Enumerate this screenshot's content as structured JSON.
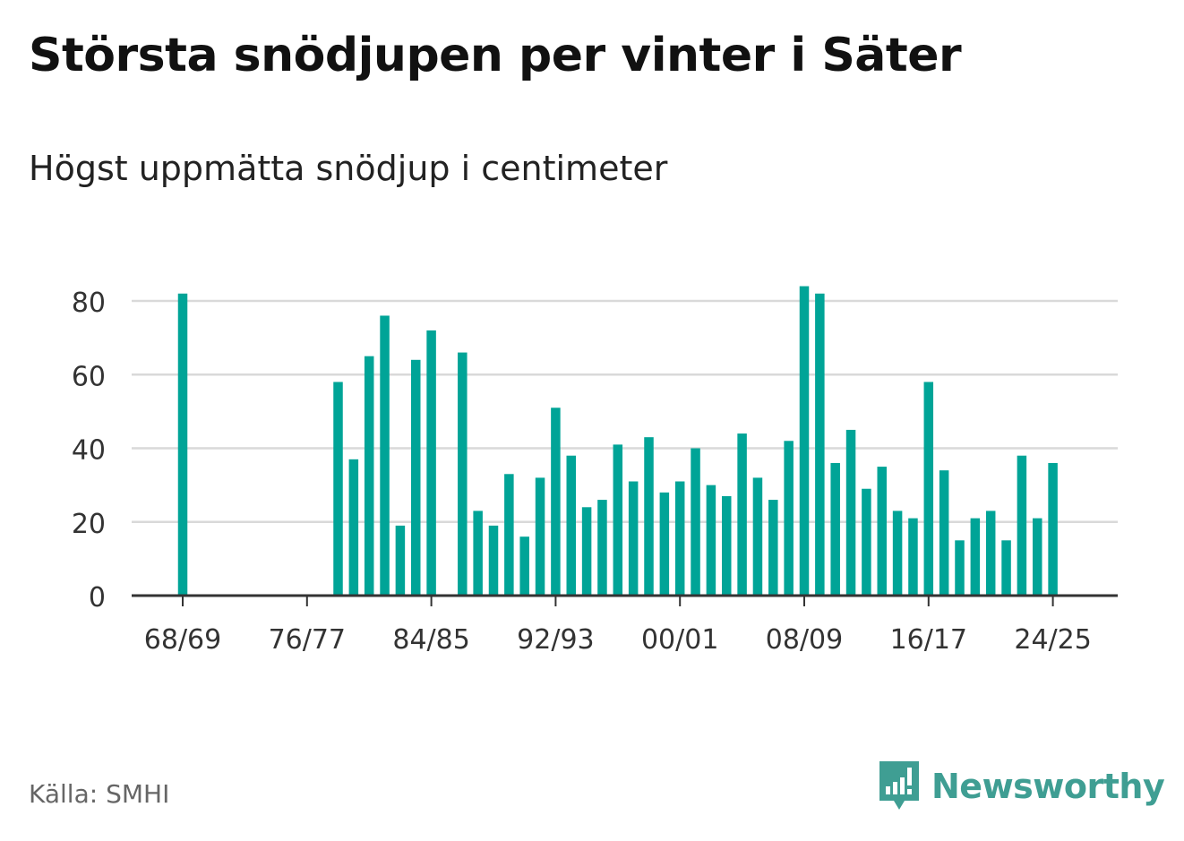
{
  "title": "Största snödjupen per vinter i Säter",
  "subtitle": "Högst uppmätta snödjup i centimeter",
  "source": "Källa: SMHI",
  "brand": {
    "name": "Newsworthy",
    "icon": "newsworthy-logo-icon",
    "color": "#3f9e93"
  },
  "colors": {
    "bar": "#00a497",
    "grid": "#d9d9d9",
    "axis": "#333333"
  },
  "chart_data": {
    "type": "bar",
    "title": "Största snödjupen per vinter i Säter",
    "subtitle": "Högst uppmätta snödjup i centimeter",
    "xlabel": "",
    "ylabel": "",
    "ylim": [
      0,
      80
    ],
    "yticks": [
      0,
      20,
      40,
      60,
      80
    ],
    "grid": true,
    "legend": "none",
    "xticks": [
      "68/69",
      "76/77",
      "84/85",
      "92/93",
      "00/01",
      "08/09",
      "16/17",
      "24/25"
    ],
    "categories": [
      "68/69",
      "69/70",
      "70/71",
      "71/72",
      "72/73",
      "73/74",
      "74/75",
      "75/76",
      "76/77",
      "77/78",
      "78/79",
      "79/80",
      "80/81",
      "81/82",
      "82/83",
      "83/84",
      "84/85",
      "85/86",
      "86/87",
      "87/88",
      "88/89",
      "89/90",
      "90/91",
      "91/92",
      "92/93",
      "93/94",
      "94/95",
      "95/96",
      "96/97",
      "97/98",
      "98/99",
      "99/00",
      "00/01",
      "01/02",
      "02/03",
      "03/04",
      "04/05",
      "05/06",
      "06/07",
      "07/08",
      "08/09",
      "09/10",
      "10/11",
      "11/12",
      "12/13",
      "13/14",
      "14/15",
      "15/16",
      "16/17",
      "17/18",
      "18/19",
      "19/20",
      "20/21",
      "21/22",
      "22/23",
      "23/24",
      "24/25",
      "25/26"
    ],
    "values": [
      82,
      null,
      null,
      null,
      null,
      null,
      null,
      null,
      null,
      null,
      58,
      37,
      65,
      76,
      19,
      64,
      72,
      null,
      66,
      23,
      19,
      33,
      16,
      32,
      51,
      38,
      24,
      26,
      41,
      31,
      43,
      28,
      31,
      40,
      30,
      27,
      44,
      32,
      26,
      42,
      84,
      82,
      36,
      45,
      29,
      35,
      23,
      21,
      58,
      34,
      15,
      21,
      23,
      15,
      38,
      21,
      36,
      null
    ]
  }
}
